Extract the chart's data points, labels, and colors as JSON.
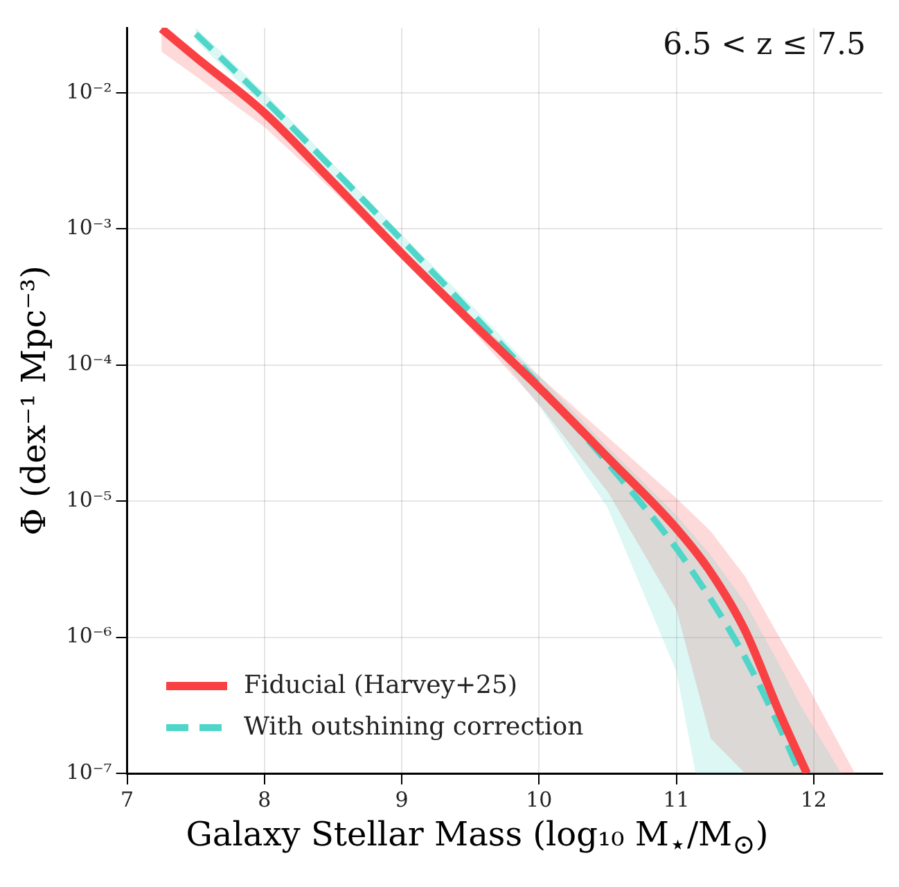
{
  "chart_data": {
    "type": "line",
    "xlabel": "Galaxy Stellar Mass (log₁₀ M$_{⋆}$/M$_{⊙}$)",
    "ylabel": "Φ (dex⁻¹ Mpc⁻³)",
    "annotations": [
      "6.5 < z ≤ 7.5"
    ],
    "log": "y",
    "xlim": [
      7,
      12.5
    ],
    "xticks": [
      7,
      8,
      9,
      10,
      11,
      12
    ],
    "ylim": [
      1e-07,
      0.03
    ],
    "yticks": [
      {
        "value": 1e-07,
        "label": "10⁻⁷"
      },
      {
        "value": 1e-06,
        "label": "10⁻⁶"
      },
      {
        "value": 1e-05,
        "label": "10⁻⁵"
      },
      {
        "value": 0.0001,
        "label": "10⁻⁴"
      },
      {
        "value": 0.001,
        "label": "10⁻³"
      },
      {
        "value": 0.01,
        "label": "10⁻²"
      }
    ],
    "grid": true,
    "legend": "bottom left",
    "series": [
      {
        "name": "Fiducial (Harvey+25)",
        "color": "#f94144",
        "line_style": "solid",
        "x": [
          7.25,
          7.5,
          8,
          8.5,
          9,
          9.5,
          10,
          10.5,
          11,
          11.25,
          11.5,
          11.75,
          11.95,
          12.3
        ],
        "values": [
          0.0295,
          0.0182,
          0.0071,
          0.00219,
          0.00066,
          0.000209,
          6.8e-05,
          2.09e-05,
          6.3e-06,
          3e-06,
          1.12e-06,
          2.8e-07,
          1e-07,
          null
        ],
        "upper": [
          0.03,
          0.0195,
          0.0076,
          0.00234,
          0.00071,
          0.000229,
          8.3e-05,
          2.95e-05,
          1.05e-05,
          6e-06,
          2.8e-06,
          1e-06,
          4.5e-07,
          1e-07
        ],
        "lower": [
          0.02,
          0.0132,
          0.0056,
          0.0019,
          0.0006,
          0.000186,
          5.1e-05,
          1.17e-05,
          1.6e-06,
          1.8e-07,
          1e-07,
          1e-07,
          1e-07,
          1e-07
        ]
      },
      {
        "name": "With outshining correction",
        "color": "#4fd6c9",
        "line_style": "dashed",
        "x": [
          7.5,
          8,
          8.5,
          9,
          9.5,
          10,
          10.5,
          11,
          11.14,
          11.25,
          11.5,
          11.75,
          11.9,
          12.2
        ],
        "values": [
          0.027,
          0.0089,
          0.00275,
          0.00083,
          0.000245,
          7.1e-05,
          1.9e-05,
          4.5e-06,
          2.8e-06,
          1.9e-06,
          7.1e-07,
          2.2e-07,
          1e-07,
          null
        ],
        "upper": [
          0.03,
          0.01,
          0.003,
          0.00091,
          0.00028,
          8.3e-05,
          2.5e-05,
          7.9e-06,
          5.4e-06,
          4e-06,
          1.8e-06,
          6.3e-07,
          3.2e-07,
          1e-07
        ],
        "lower": [
          0.024,
          0.0079,
          0.0024,
          0.00074,
          0.00022,
          5e-05,
          8.9e-06,
          5.6e-07,
          1e-07,
          1e-07,
          1e-07,
          1e-07,
          1e-07,
          1e-07
        ]
      }
    ]
  }
}
